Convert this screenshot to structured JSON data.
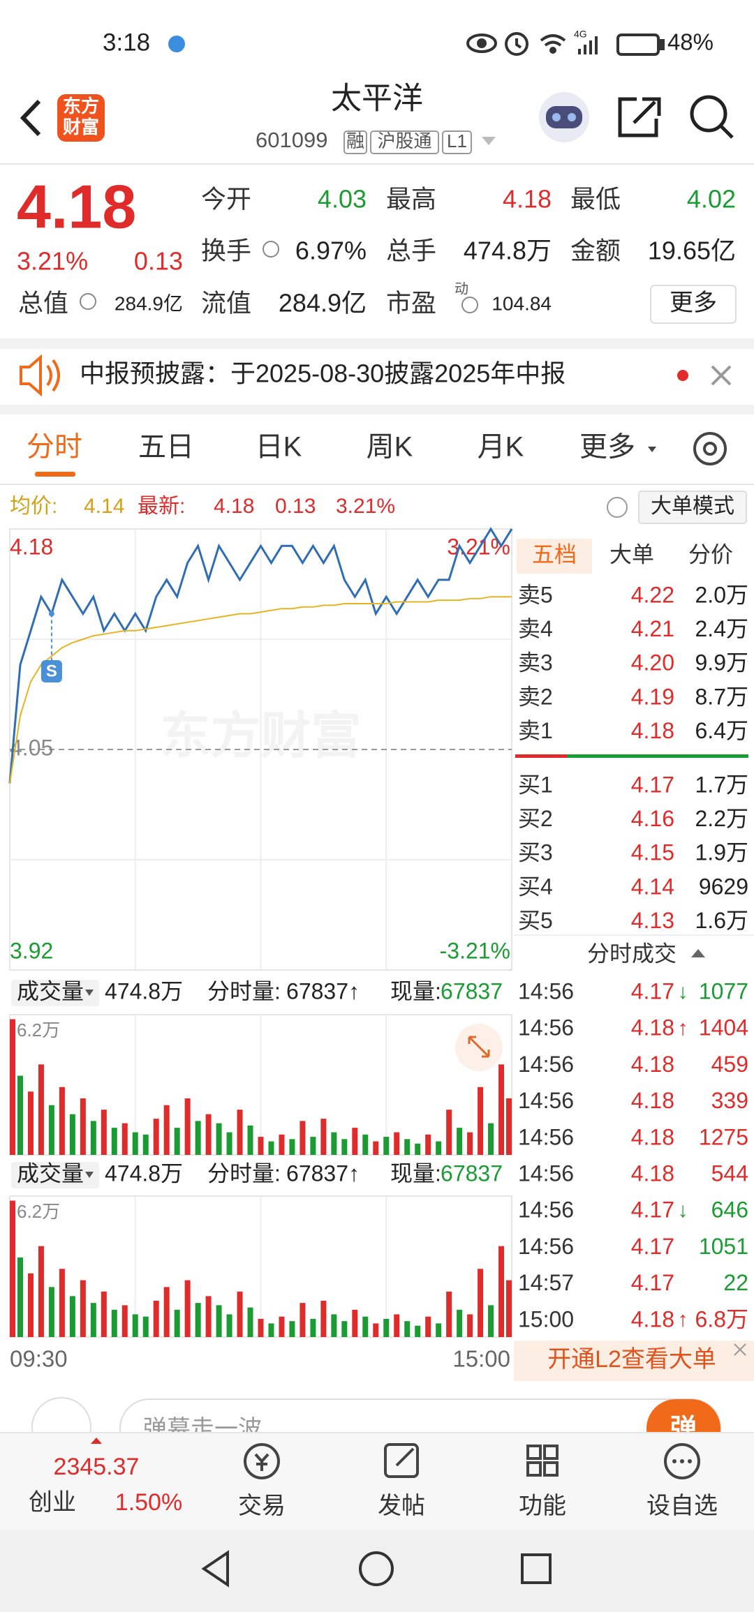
{
  "status_bar": {
    "time": "3:18",
    "network": "4G",
    "battery": "48%"
  },
  "header": {
    "logo": [
      "东方",
      "财富"
    ],
    "title": "太平洋",
    "code": "601099",
    "tags": [
      "融",
      "沪股通",
      "L1"
    ]
  },
  "quote": {
    "price": "4.18",
    "change_pct": "3.21%",
    "change": "0.13",
    "fields": [
      {
        "label": "今开",
        "value": "4.03",
        "color": "#1a9c32"
      },
      {
        "label": "最高",
        "value": "4.18",
        "color": "#e02b2b"
      },
      {
        "label": "最低",
        "value": "4.02",
        "color": "#1a9c32"
      },
      {
        "label": "换手",
        "value": "6.97%"
      },
      {
        "label": "总手",
        "value": "474.8万"
      },
      {
        "label": "金额",
        "value": "19.65亿"
      },
      {
        "label": "总值",
        "value": "284.9亿"
      },
      {
        "label": "流值",
        "value": "284.9亿"
      },
      {
        "label": "市盈",
        "sup": "动",
        "value": "104.84"
      }
    ],
    "more": "更多"
  },
  "notice": "中报预披露：于2025-08-30披露2025年中报",
  "tabs": [
    "分时",
    "五日",
    "日K",
    "周K",
    "月K",
    "更多"
  ],
  "info_line": {
    "avg_label": "均价:",
    "avg": "4.14",
    "last_label": "最新:",
    "last": "4.18",
    "change": "0.13",
    "pct": "3.21%",
    "big_order": "大单模式"
  },
  "chart_data": [
    {
      "type": "line",
      "watermark": "东方财富",
      "signal": "S",
      "grid": true,
      "categories": [
        "09:30",
        null,
        null,
        null,
        null,
        null,
        null,
        null,
        null,
        null,
        null,
        null,
        null,
        null,
        null,
        null,
        null,
        null,
        null,
        null,
        null,
        null,
        null,
        null,
        null,
        null,
        null,
        null,
        null,
        null,
        null,
        null,
        null,
        null,
        null,
        null,
        null,
        null,
        null,
        null,
        null,
        null,
        null,
        null,
        null,
        null,
        null,
        null,
        "15:00"
      ],
      "series": [
        {
          "color": "#2f6db5",
          "values": [
            4.03,
            4.1,
            4.12,
            4.14,
            4.13,
            4.15,
            4.14,
            4.13,
            4.14,
            4.12,
            4.13,
            4.12,
            4.13,
            4.12,
            4.14,
            4.15,
            4.14,
            4.16,
            4.17,
            4.15,
            4.17,
            4.16,
            4.15,
            4.16,
            4.17,
            4.16,
            4.17,
            4.17,
            4.16,
            4.17,
            4.16,
            4.17,
            4.15,
            4.14,
            4.15,
            4.13,
            4.14,
            4.13,
            4.14,
            4.15,
            4.14,
            4.15,
            4.15,
            4.17,
            4.16,
            4.17,
            4.18,
            4.17,
            4.18
          ]
        },
        {
          "color": "#e6b422",
          "values": [
            4.03,
            4.07,
            4.09,
            4.1,
            4.105,
            4.11,
            4.113,
            4.115,
            4.117,
            4.118,
            4.119,
            4.12,
            4.12,
            4.121,
            4.122,
            4.123,
            4.124,
            4.125,
            4.126,
            4.127,
            4.128,
            4.129,
            4.13,
            4.13,
            4.131,
            4.132,
            4.133,
            4.133,
            4.134,
            4.134,
            4.135,
            4.135,
            4.136,
            4.136,
            4.136,
            4.136,
            4.136,
            4.137,
            4.137,
            4.137,
            4.137,
            4.138,
            4.138,
            4.138,
            4.139,
            4.139,
            4.14,
            4.14,
            4.14
          ]
        }
      ],
      "ylim": [
        3.92,
        4.18
      ],
      "yticks": [
        3.92,
        4.05,
        4.18
      ],
      "y2lim": [
        -3.21,
        3.21
      ],
      "y2ticks": [
        {
          "value": -3.21,
          "label": "-3.21%"
        },
        {
          "value": 3.21,
          "label": "3.21%"
        }
      ],
      "tick_colors": [
        "#1a9c32",
        "#888888",
        "#e02b2b"
      ]
    },
    {
      "type": "bar",
      "ylim": [
        0,
        62000
      ],
      "yticks": [
        {
          "value": 62000,
          "label": "6.2万"
        }
      ],
      "series": [
        {
          "color": "#e02b2b",
          "values": [
            60000,
            null,
            28000,
            40000,
            null,
            30000,
            null,
            25000,
            null,
            20000,
            null,
            14000,
            null,
            null,
            16000,
            22000,
            null,
            25000,
            null,
            18000,
            null,
            null,
            20000,
            null,
            8000,
            null,
            9000,
            null,
            15000,
            null,
            16000,
            null,
            null,
            12000,
            null,
            6000,
            null,
            10000,
            null,
            null,
            9000,
            null,
            20000,
            null,
            10000,
            30000,
            null,
            40000,
            25000
          ]
        },
        {
          "color": "#1a9c32",
          "values": [
            null,
            35000,
            null,
            null,
            22000,
            null,
            18000,
            null,
            15000,
            null,
            12000,
            null,
            10000,
            9000,
            null,
            null,
            12000,
            null,
            15000,
            null,
            14000,
            10000,
            null,
            13000,
            null,
            6000,
            null,
            7000,
            null,
            8000,
            null,
            10000,
            7000,
            null,
            9000,
            null,
            8000,
            null,
            7000,
            5000,
            null,
            6000,
            null,
            12000,
            null,
            null,
            14000,
            null,
            null
          ]
        }
      ]
    }
  ],
  "volume_header": {
    "label": "成交量",
    "total": "474.8万",
    "period_label": "分时量:",
    "period": "67837↑",
    "now_label": "现量:",
    "now": "67837"
  },
  "order_book": {
    "tabs": [
      "五档",
      "大单",
      "分价"
    ],
    "asks": [
      [
        "卖5",
        "4.22",
        "2.0万"
      ],
      [
        "卖4",
        "4.21",
        "2.4万"
      ],
      [
        "卖3",
        "4.20",
        "9.9万"
      ],
      [
        "卖2",
        "4.19",
        "8.7万"
      ],
      [
        "卖1",
        "4.18",
        "6.4万"
      ]
    ],
    "bids": [
      [
        "买1",
        "4.17",
        "1.7万"
      ],
      [
        "买2",
        "4.16",
        "2.2万"
      ],
      [
        "买3",
        "4.15",
        "1.9万"
      ],
      [
        "买4",
        "4.14",
        "9629"
      ],
      [
        "买5",
        "4.13",
        "1.6万"
      ]
    ]
  },
  "trades": {
    "title": "分时成交",
    "rows": [
      {
        "time": "14:56",
        "price": "4.17",
        "arrow": "↓",
        "vol": "1077",
        "color": "#1a9c32"
      },
      {
        "time": "14:56",
        "price": "4.18",
        "arrow": "↑",
        "vol": "1404",
        "color": "#e02b2b"
      },
      {
        "time": "14:56",
        "price": "4.18",
        "vol": "459",
        "color": "#e02b2b"
      },
      {
        "time": "14:56",
        "price": "4.18",
        "vol": "339",
        "color": "#e02b2b"
      },
      {
        "time": "14:56",
        "price": "4.18",
        "vol": "1275",
        "color": "#e02b2b"
      },
      {
        "time": "14:56",
        "price": "4.18",
        "vol": "544",
        "color": "#e02b2b"
      },
      {
        "time": "14:56",
        "price": "4.17",
        "arrow": "↓",
        "vol": "646",
        "color": "#1a9c32"
      },
      {
        "time": "14:56",
        "price": "4.17",
        "vol": "1051",
        "color": "#1a9c32"
      },
      {
        "time": "14:57",
        "price": "4.17",
        "vol": "22",
        "color": "#1a9c32"
      },
      {
        "time": "15:00",
        "price": "4.18",
        "arrow": "↑",
        "vol": "6.8万",
        "color": "#e02b2b"
      }
    ]
  },
  "l2_banner": "开通L2查看大单",
  "comment": {
    "placeholder": "弹幕走一波",
    "send": "弹"
  },
  "bottom_nav": {
    "index_value": "2345.37",
    "index_name": "创业",
    "index_pct": "1.50%",
    "items": [
      "交易",
      "发帖",
      "功能",
      "设自选"
    ]
  }
}
